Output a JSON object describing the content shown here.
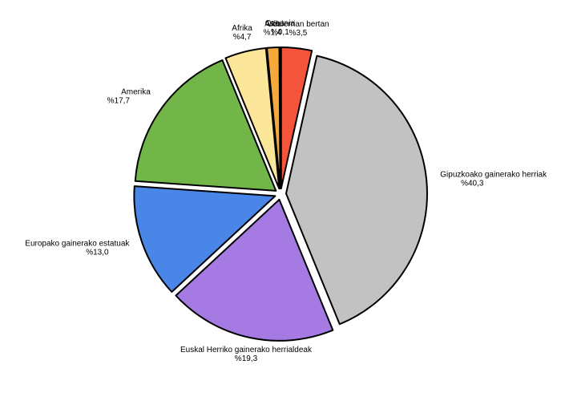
{
  "chart_data": {
    "type": "pie",
    "categories": [
      "Udalerrian bertan",
      "Gipuzkoako gainerako herriak",
      "Euskal Herriko gainerako herrialdeak",
      "Europako gainerako estatuak",
      "Amerika",
      "Afrika",
      "Asia",
      "Ozeania"
    ],
    "values": [
      3.5,
      40.3,
      19.3,
      13.0,
      17.7,
      4.7,
      1.4,
      0.1
    ],
    "value_labels": [
      "%3,5",
      "%40,3",
      "%19,3",
      "%13,0",
      "%17,7",
      "%4,7",
      "%1,4",
      "%0,1"
    ],
    "colors": [
      "#f4553a",
      "#c2c2c2",
      "#a57be3",
      "#4a86e8",
      "#72b64a",
      "#fbe69a",
      "#f6a93b",
      "#3a3a3a"
    ]
  }
}
